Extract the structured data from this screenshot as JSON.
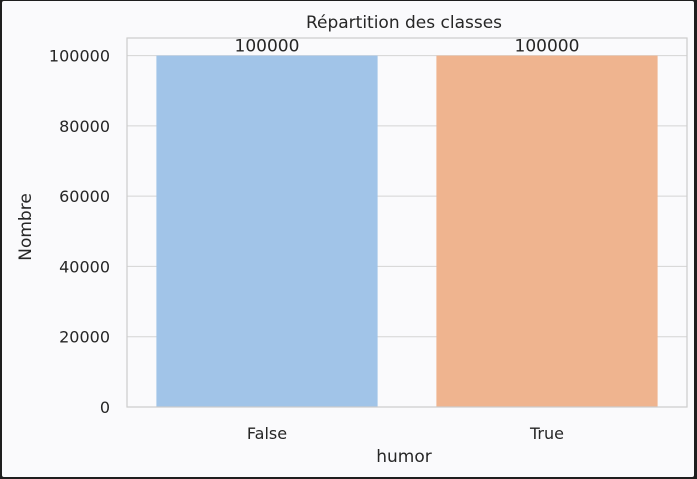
{
  "chart_data": {
    "type": "bar",
    "title": "Répartition des classes",
    "xlabel": "humor",
    "ylabel": "Nombre",
    "categories": [
      "False",
      "True"
    ],
    "values": [
      100000,
      100000
    ],
    "data_labels": [
      "100000",
      "100000"
    ],
    "colors": [
      "#a1c4e8",
      "#efb48f"
    ],
    "ylim": [
      0,
      105000
    ],
    "yticks": [
      0,
      20000,
      40000,
      60000,
      80000,
      100000
    ],
    "ytick_labels": [
      "0",
      "20000",
      "40000",
      "60000",
      "80000",
      "100000"
    ],
    "grid": true,
    "legend": "none"
  }
}
